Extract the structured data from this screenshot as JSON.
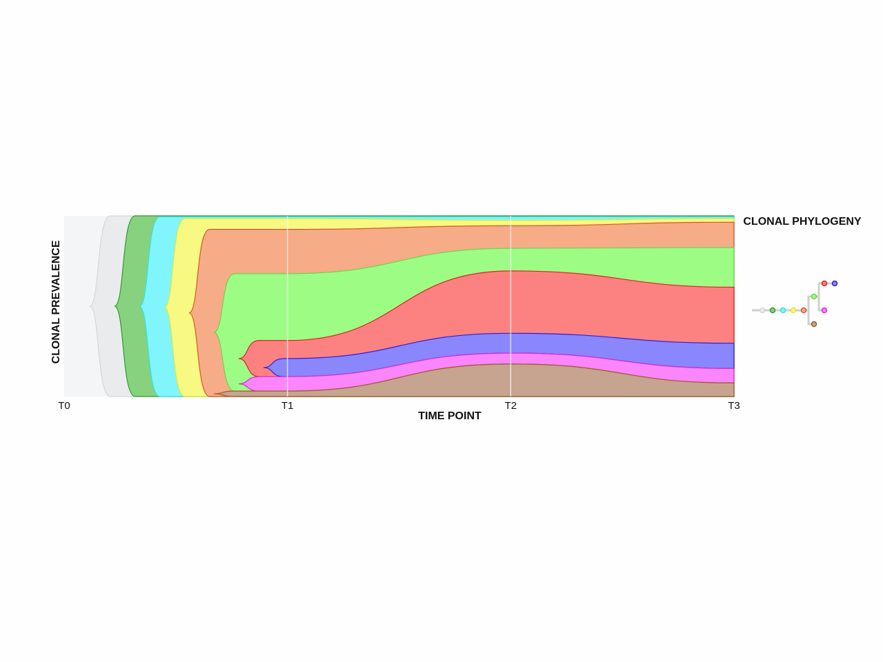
{
  "chart_data": {
    "type": "fishplot",
    "title": "CLONAL PHYLOGENY",
    "x_label": "TIME POINT",
    "y_label": "CLONAL PREVALENCE",
    "categories": [
      "T0",
      "T1",
      "T2",
      "T3"
    ],
    "ylim": [
      0,
      100
    ],
    "grid": true,
    "background": "#f4f5f6",
    "series": [
      {
        "color": "#e9ebed",
        "line_color": "#d3d6d9",
        "parent": null,
        "values": [
          100,
          0,
          0,
          0
        ]
      },
      {
        "color": "#86d27e",
        "line_color": "#2d9a2d",
        "parent": 0,
        "values": [
          null,
          0.5,
          0.5,
          0.5
        ]
      },
      {
        "color": "#80f5fb",
        "line_color": "#33e0e8",
        "parent": 1,
        "values": [
          null,
          1,
          2,
          1
        ]
      },
      {
        "color": "#f7f982",
        "line_color": "#e5e530",
        "parent": 2,
        "values": [
          null,
          6,
          3,
          2
        ]
      },
      {
        "color": "#f6ac86",
        "line_color": "#d9542a",
        "parent": 3,
        "values": [
          null,
          24.5,
          12.5,
          14
        ]
      },
      {
        "color": "#9dfc84",
        "line_color": "#6ad353",
        "parent": 4,
        "values": [
          null,
          37,
          12.5,
          22
        ]
      },
      {
        "color": "#fc8282",
        "line_color": "#e02020",
        "parent": 5,
        "values": [
          null,
          10,
          34.5,
          31
        ]
      },
      {
        "color": "#8a86fb",
        "line_color": "#2b20d8",
        "parent": 6,
        "values": [
          null,
          10,
          11,
          14
        ]
      },
      {
        "color": "#fb85fb",
        "line_color": "#d72ad7",
        "parent": 5,
        "values": [
          null,
          8,
          6,
          8
        ]
      },
      {
        "color": "#c6a48f",
        "line_color": "#9a5a2a",
        "parent": 4,
        "values": [
          null,
          3,
          18,
          7.5
        ]
      }
    ]
  }
}
